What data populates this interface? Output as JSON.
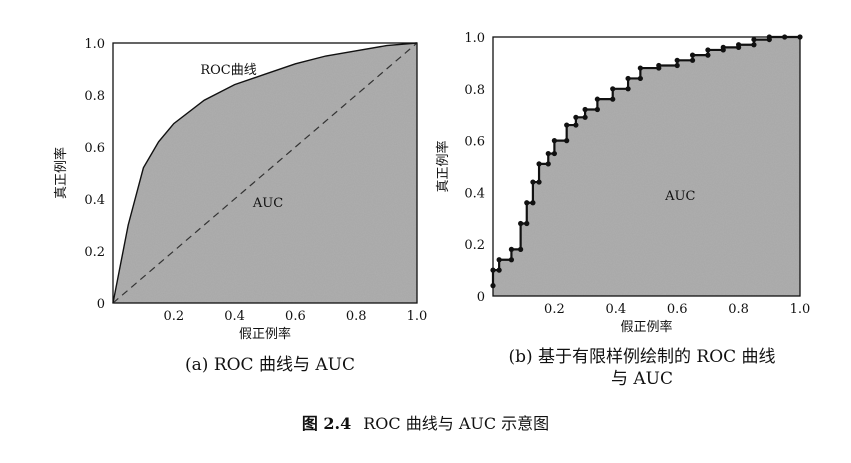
{
  "chart_data": [
    {
      "type": "area",
      "title": "",
      "xlabel": "假正例率",
      "ylabel": "真正例率",
      "xlim": [
        0,
        1
      ],
      "ylim": [
        0,
        1
      ],
      "x_ticks": [
        "0.2",
        "0.4",
        "0.6",
        "0.8",
        "1.0"
      ],
      "y_ticks": [
        "0",
        "0.2",
        "0.4",
        "0.6",
        "0.8",
        "1.0"
      ],
      "curve_label": "ROC曲线",
      "area_label": "AUC",
      "grid": false,
      "series": [
        {
          "name": "ROC曲线",
          "x": [
            0,
            0.02,
            0.05,
            0.1,
            0.15,
            0.2,
            0.3,
            0.4,
            0.5,
            0.6,
            0.7,
            0.8,
            0.9,
            1.0
          ],
          "y": [
            0,
            0.12,
            0.3,
            0.52,
            0.62,
            0.69,
            0.78,
            0.84,
            0.88,
            0.92,
            0.95,
            0.97,
            0.99,
            1.0
          ]
        },
        {
          "name": "",
          "style": "dashed",
          "x": [
            0,
            1
          ],
          "y": [
            0,
            1
          ]
        }
      ]
    },
    {
      "type": "area",
      "title": "",
      "xlabel": "假正例率",
      "ylabel": "真正例率",
      "xlim": [
        0,
        1
      ],
      "ylim": [
        0,
        1
      ],
      "x_ticks": [
        "0.2",
        "0.4",
        "0.6",
        "0.8",
        "1.0"
      ],
      "y_ticks": [
        "0",
        "0.2",
        "0.4",
        "0.6",
        "0.8",
        "1.0"
      ],
      "area_label": "AUC",
      "grid": false,
      "series": [
        {
          "name": "",
          "x": [
            0,
            0,
            0.02,
            0.02,
            0.06,
            0.06,
            0.09,
            0.09,
            0.11,
            0.11,
            0.13,
            0.13,
            0.15,
            0.15,
            0.18,
            0.18,
            0.2,
            0.2,
            0.24,
            0.24,
            0.27,
            0.27,
            0.3,
            0.3,
            0.34,
            0.34,
            0.39,
            0.39,
            0.44,
            0.44,
            0.48,
            0.48,
            0.54,
            0.54,
            0.6,
            0.6,
            0.65,
            0.65,
            0.7,
            0.7,
            0.75,
            0.75,
            0.8,
            0.8,
            0.85,
            0.85,
            0.9,
            0.9,
            0.95,
            0.95,
            1.0
          ],
          "y": [
            0.04,
            0.1,
            0.1,
            0.14,
            0.14,
            0.18,
            0.18,
            0.28,
            0.28,
            0.36,
            0.36,
            0.44,
            0.44,
            0.51,
            0.51,
            0.55,
            0.55,
            0.6,
            0.6,
            0.66,
            0.66,
            0.69,
            0.69,
            0.72,
            0.72,
            0.76,
            0.76,
            0.8,
            0.8,
            0.84,
            0.84,
            0.88,
            0.88,
            0.89,
            0.89,
            0.91,
            0.91,
            0.93,
            0.93,
            0.95,
            0.95,
            0.96,
            0.96,
            0.97,
            0.97,
            0.99,
            0.99,
            1.0,
            1.0,
            1.0,
            1.0
          ]
        }
      ]
    }
  ],
  "captions": {
    "a": "(a) ROC 曲线与 AUC",
    "b_line1": "(b) 基于有限样例绘制的 ROC 曲线",
    "b_line2": "与 AUC",
    "figure_number": "图 2.4",
    "figure_text": "ROC 曲线与 AUC 示意图"
  }
}
